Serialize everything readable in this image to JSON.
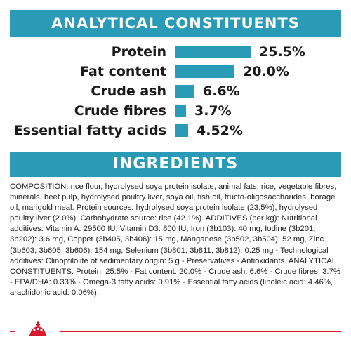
{
  "colors": {
    "accent": "#2a9bb6",
    "brand_red": "#d8182b",
    "text": "#1a1a1a"
  },
  "analytical": {
    "title": "ANALYTICAL CONSTITUENTS",
    "rows": [
      {
        "label": "Protein",
        "value": "25.5%",
        "percent": 25.5
      },
      {
        "label": "Fat content",
        "value": "20.0%",
        "percent": 20.0
      },
      {
        "label": "Crude ash",
        "value": "6.6%",
        "percent": 6.6
      },
      {
        "label": "Crude fibres",
        "value": "3.7%",
        "percent": 3.7
      },
      {
        "label": "Essential fatty acids",
        "value": "4.52%",
        "percent": 4.52
      }
    ]
  },
  "ingredients": {
    "title": "INGREDIENTS",
    "text": "COMPOSITION: rice flour, hydrolysed soya protein isolate, animal fats, rice, vegetable fibres, minerals, beet pulp, hydrolysed poultry liver, soya oil, fish oil, fructo-oligosaccharides, borage oil, marigold meal. Protein sources: hydrolysed soya protein isolate (23.5%), hydrolysed poultry liver (2.0%). Carbohydrate source: rice (42.1%). ADDITIVES (per kg): Nutritional additives: Vitamin A: 29500 IU, Vitamin D3: 800 IU, Iron (3b103): 40 mg, Iodine (3b201, 3b202): 3.6 mg, Copper (3b405, 3b406): 15 mg, Manganese (3b502, 3b504): 52 mg, Zinc (3b603, 3b605, 3b606): 154 mg, Selenium (3b801, 3b811, 3b812): 0.25 mg - Technological additives: Clinoptilolite of sedimentary origin: 5 g - Preservatives - Antioxidants. ANALYTICAL CONSTITUENTS: Protein: 25.5% - Fat content: 20.0% - Crude ash: 6.6% - Crude fibres: 3.7% - EPA/DHA: 0.33% - Omega-3 fatty acids: 0.91% - Essential fatty acids (linoleic acid: 4.46%, arachidonic acid: 0.06%)."
  },
  "footer": {
    "logo_icon": "crown-logo-icon"
  }
}
